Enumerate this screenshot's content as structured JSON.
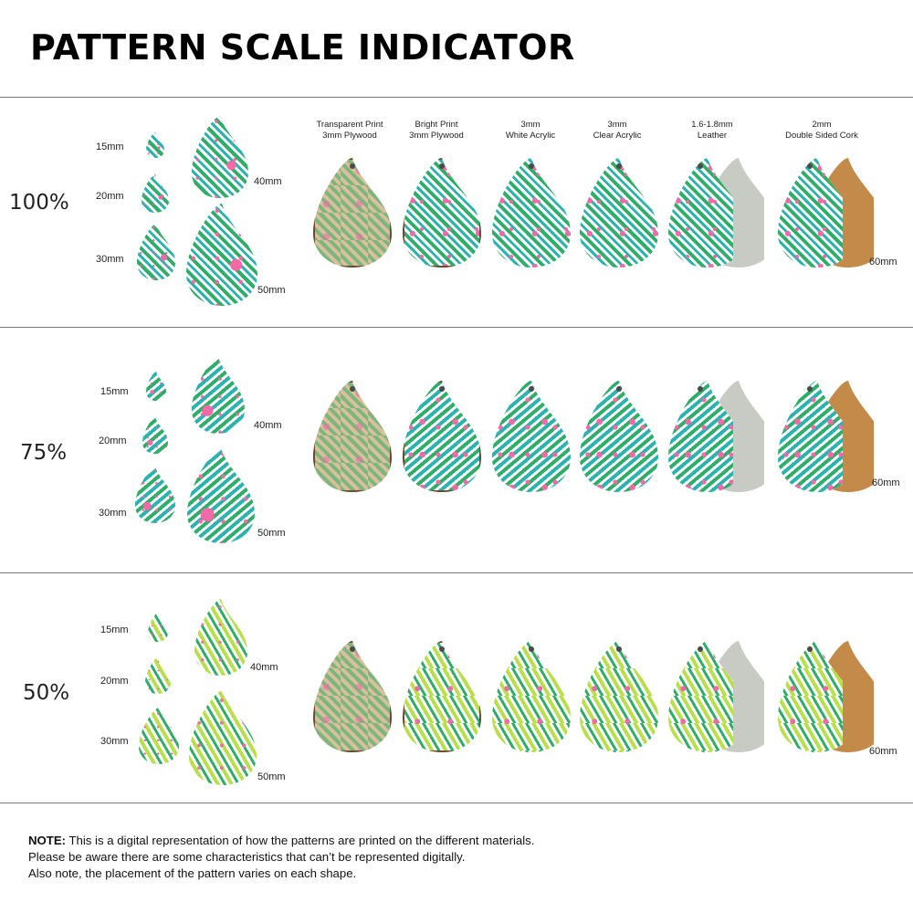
{
  "title": "PATTERN SCALE INDICATOR",
  "materials": [
    {
      "line1": "Transparent Print",
      "line2": "3mm Plywood"
    },
    {
      "line1": "Bright Print",
      "line2": "3mm Plywood"
    },
    {
      "line1": "3mm",
      "line2": "White Acrylic"
    },
    {
      "line1": "3mm",
      "line2": "Clear Acrylic"
    },
    {
      "line1": "1.6-1.8mm",
      "line2": "Leather"
    },
    {
      "line1": "2mm",
      "line2": "Double Sided Cork"
    }
  ],
  "sections": [
    {
      "scale": "100%",
      "sizes": [
        "15mm",
        "20mm",
        "30mm",
        "40mm",
        "50mm"
      ],
      "drop_size": "60mm"
    },
    {
      "scale": "75%",
      "sizes": [
        "15mm",
        "20mm",
        "30mm",
        "40mm",
        "50mm"
      ],
      "drop_size": "60mm"
    },
    {
      "scale": "50%",
      "sizes": [
        "15mm",
        "20mm",
        "30mm",
        "40mm",
        "50mm"
      ],
      "drop_size": "60mm"
    }
  ],
  "note": {
    "label": "NOTE:",
    "line1": " This is a digital representation of how the patterns are printed on the different materials.",
    "line2": "Please be aware there are some characteristics that can’t be represented digitally.",
    "line3": "Also note, the placement of the pattern varies on each shape."
  },
  "colors": {
    "leaf_green": "#2fae6a",
    "teal": "#2bb3b0",
    "pink": "#f06aa8",
    "lime": "#b9e04a",
    "plywood": "#d9c09a",
    "leather_back": "#c8cbc4",
    "cork": "#c48a4a"
  }
}
